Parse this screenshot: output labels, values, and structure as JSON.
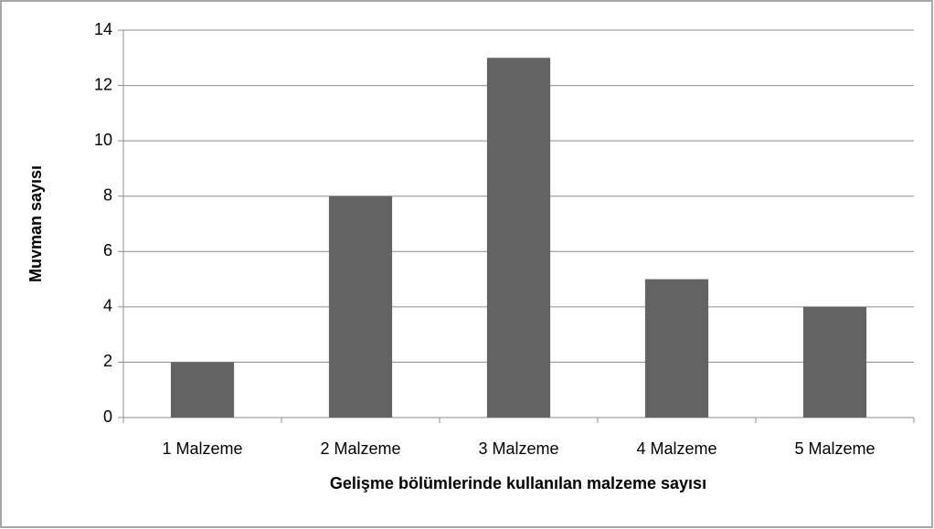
{
  "chart_data": {
    "type": "bar",
    "x_label": "Gelişme bölümlerinde kullanılan malzeme sayısı",
    "y_label": "Muvman sayısı",
    "categories": [
      "1 Malzeme",
      "2 Malzeme",
      "3 Malzeme",
      "4 Malzeme",
      "5 Malzeme"
    ],
    "values": [
      2,
      8,
      13,
      5,
      4
    ],
    "color": "#636363",
    "ylim": [
      0,
      14
    ],
    "yticks": [
      0,
      2,
      4,
      6,
      8,
      10,
      12,
      14
    ],
    "grid": true
  }
}
